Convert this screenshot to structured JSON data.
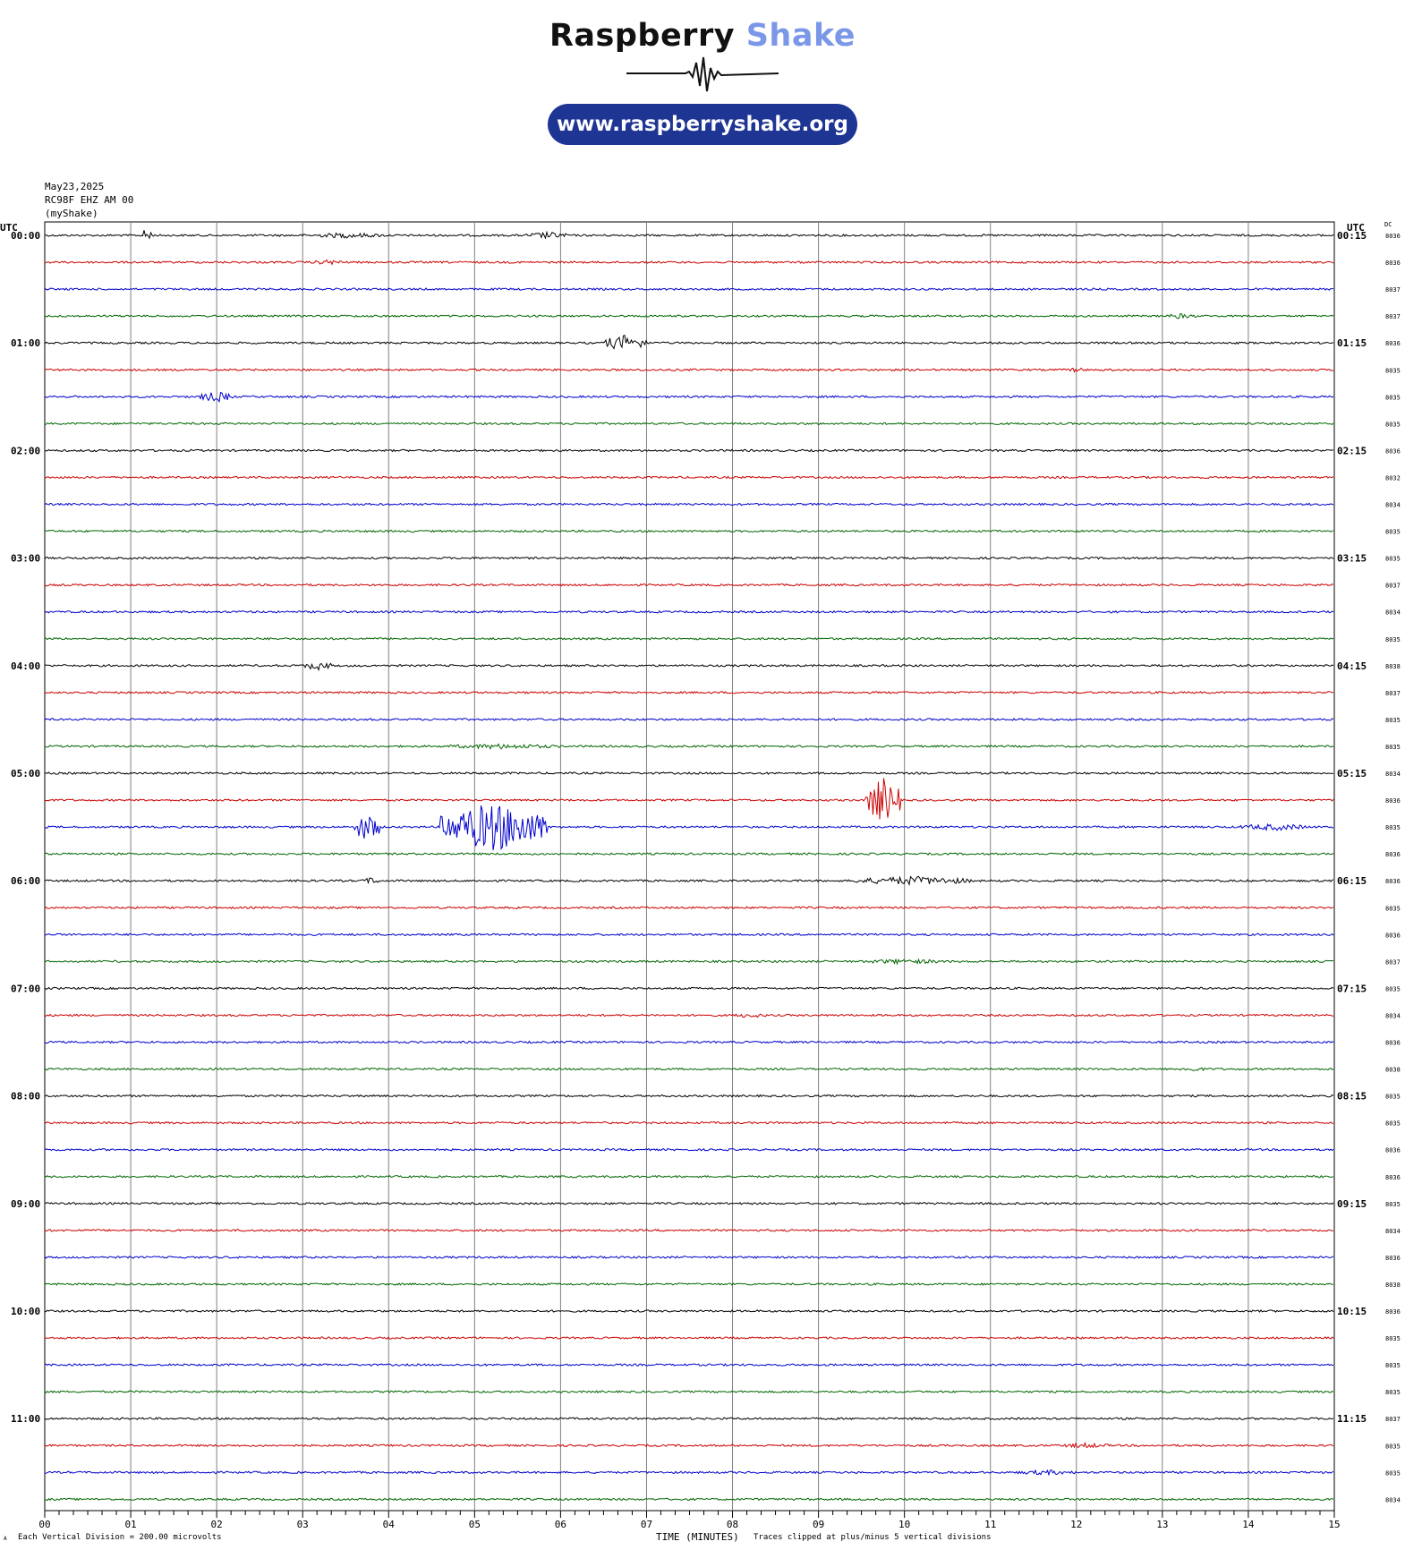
{
  "logo": {
    "brand_primary": "Raspberry",
    "brand_secondary": "Shake",
    "url": "www.raspberryshake.org",
    "pill_color": "#1f3594",
    "secondary_color": "#7b97e8"
  },
  "header": {
    "date": "May23,2025",
    "station": "RC98F EHZ AM 00",
    "network": "(myShake)",
    "utc_left": "UTC",
    "utc_right": "UTC",
    "dc_label": "DC"
  },
  "footer": {
    "division_note": "Each Vertical Division =  200.00 microvolts",
    "xlabel": "TIME (MINUTES)",
    "clip_note": "Traces clipped at plus/minus 5 vertical divisions",
    "corner_mark": "A"
  },
  "chart_data": {
    "type": "line",
    "title": "",
    "xlabel": "TIME (MINUTES)",
    "ylabel": "",
    "xlim": [
      0,
      15
    ],
    "x_ticks": [
      "00",
      "01",
      "02",
      "03",
      "04",
      "05",
      "06",
      "07",
      "08",
      "09",
      "10",
      "11",
      "12",
      "13",
      "14",
      "15"
    ],
    "grid": true,
    "trace_colors": [
      "#000000",
      "#cc0000",
      "#0000cc",
      "#006600"
    ],
    "left_labels": [
      "00:00",
      "01:00",
      "02:00",
      "03:00",
      "04:00",
      "05:00",
      "06:00",
      "07:00",
      "08:00",
      "09:00",
      "10:00",
      "11:00"
    ],
    "right_labels": [
      "00:15",
      "01:15",
      "02:15",
      "03:15",
      "04:15",
      "05:15",
      "06:15",
      "07:15",
      "08:15",
      "09:15",
      "10:15",
      "11:15"
    ],
    "dc_values": [
      "8036",
      "8036",
      "8037",
      "8037",
      "8036",
      "8035",
      "8035",
      "8035",
      "8036",
      "8032",
      "8034",
      "8035",
      "8035",
      "8037",
      "8034",
      "8035",
      "8038",
      "8037",
      "8035",
      "8035",
      "8034",
      "8036",
      "8035",
      "8036",
      "8036",
      "8035",
      "8036",
      "8037",
      "8035",
      "8034",
      "8036",
      "8038",
      "8035",
      "8035",
      "8036",
      "8036",
      "8035",
      "8034",
      "8036",
      "8038",
      "8036",
      "8035",
      "8035",
      "8035",
      "8037",
      "8035",
      "8035",
      "8034"
    ],
    "events": [
      {
        "trace": 0,
        "start_min": 1.15,
        "end_min": 1.25,
        "amp": 12
      },
      {
        "trace": 0,
        "start_min": 3.0,
        "end_min": 4.0,
        "amp": 3
      },
      {
        "trace": 0,
        "start_min": 5.6,
        "end_min": 6.1,
        "amp": 4
      },
      {
        "trace": 1,
        "start_min": 3.1,
        "end_min": 3.5,
        "amp": 3
      },
      {
        "trace": 3,
        "start_min": 13.0,
        "end_min": 13.4,
        "amp": 3
      },
      {
        "trace": 4,
        "start_min": 6.5,
        "end_min": 7.0,
        "amp": 9
      },
      {
        "trace": 5,
        "start_min": 11.9,
        "end_min": 12.1,
        "amp": 3
      },
      {
        "trace": 6,
        "start_min": 1.8,
        "end_min": 2.2,
        "amp": 6
      },
      {
        "trace": 16,
        "start_min": 3.0,
        "end_min": 3.35,
        "amp": 5
      },
      {
        "trace": 19,
        "start_min": 4.6,
        "end_min": 6.0,
        "amp": 3
      },
      {
        "trace": 21,
        "start_min": 9.55,
        "end_min": 9.95,
        "amp": 26
      },
      {
        "trace": 22,
        "start_min": 3.6,
        "end_min": 3.9,
        "amp": 16
      },
      {
        "trace": 22,
        "start_min": 4.6,
        "end_min": 5.85,
        "amp": 28
      },
      {
        "trace": 22,
        "start_min": 13.9,
        "end_min": 14.7,
        "amp": 4
      },
      {
        "trace": 24,
        "start_min": 3.7,
        "end_min": 3.9,
        "amp": 4
      },
      {
        "trace": 24,
        "start_min": 9.4,
        "end_min": 10.8,
        "amp": 5
      },
      {
        "trace": 27,
        "start_min": 9.5,
        "end_min": 10.5,
        "amp": 3
      },
      {
        "trace": 29,
        "start_min": 8.0,
        "end_min": 8.4,
        "amp": 3
      },
      {
        "trace": 31,
        "start_min": 13.2,
        "end_min": 13.5,
        "amp": 3
      },
      {
        "trace": 45,
        "start_min": 11.8,
        "end_min": 12.4,
        "amp": 3
      },
      {
        "trace": 46,
        "start_min": 11.3,
        "end_min": 12.0,
        "amp": 3
      }
    ]
  }
}
